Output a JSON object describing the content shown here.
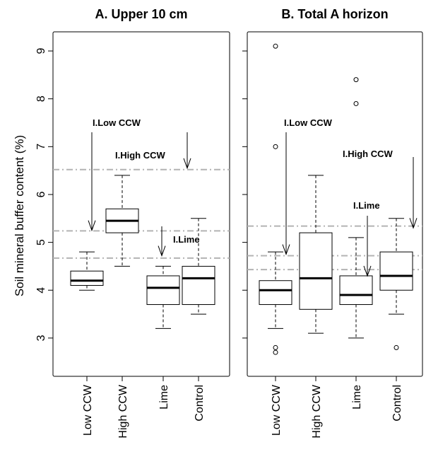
{
  "chart_data": {
    "type": "box",
    "ylabel": "Soil mineral buffer content (%)",
    "ylim": [
      2.2,
      9.4
    ],
    "y_ticks": [
      3,
      4,
      5,
      6,
      7,
      8,
      9
    ],
    "categories": [
      "Low CCW",
      "High CCW",
      "Lime",
      "Control"
    ],
    "grid": false,
    "panels": [
      {
        "title": "A. Upper 10 cm",
        "boxes": [
          {
            "category": "Low CCW",
            "whisker_low": 4.0,
            "q1": 4.1,
            "median": 4.2,
            "q3": 4.4,
            "whisker_high": 4.8,
            "outliers": []
          },
          {
            "category": "High CCW",
            "whisker_low": 4.5,
            "q1": 5.2,
            "median": 5.45,
            "q3": 5.7,
            "whisker_high": 6.4,
            "outliers": []
          },
          {
            "category": "Lime",
            "whisker_low": 3.2,
            "q1": 3.7,
            "median": 4.05,
            "q3": 4.3,
            "whisker_high": 4.5,
            "outliers": []
          },
          {
            "category": "Control",
            "whisker_low": 3.5,
            "q1": 3.7,
            "median": 4.25,
            "q3": 4.5,
            "whisker_high": 5.5,
            "outliers": []
          }
        ],
        "reference_lines": [
          6.52,
          5.24,
          4.67
        ],
        "annotations": [
          {
            "text": "I.Low CCW",
            "arrow_to_y": 5.25
          },
          {
            "text": "I.High CCW",
            "arrow_to_y": 6.55
          },
          {
            "text": "I.Lime",
            "arrow_to_y": 4.72
          }
        ]
      },
      {
        "title": "B. Total A horizon",
        "boxes": [
          {
            "category": "Low CCW",
            "whisker_low": 3.2,
            "q1": 3.7,
            "median": 4.0,
            "q3": 4.2,
            "whisker_high": 4.8,
            "outliers": [
              9.1,
              7.0,
              2.8,
              2.7
            ]
          },
          {
            "category": "High CCW",
            "whisker_low": 3.1,
            "q1": 3.6,
            "median": 4.25,
            "q3": 5.2,
            "whisker_high": 6.4,
            "outliers": []
          },
          {
            "category": "Lime",
            "whisker_low": 3.0,
            "q1": 3.7,
            "median": 3.9,
            "q3": 4.3,
            "whisker_high": 5.1,
            "outliers": [
              8.4,
              7.9
            ]
          },
          {
            "category": "Control",
            "whisker_low": 3.5,
            "q1": 4.0,
            "median": 4.3,
            "q3": 4.8,
            "whisker_high": 5.5,
            "outliers": [
              2.8
            ]
          }
        ],
        "reference_lines": [
          5.34,
          4.72,
          4.43
        ],
        "annotations": [
          {
            "text": "I.Low CCW",
            "arrow_to_y": 4.75
          },
          {
            "text": "I.Lime",
            "arrow_to_y": 4.3
          },
          {
            "text": "I.High CCW",
            "arrow_to_y": 5.3
          }
        ]
      }
    ]
  }
}
